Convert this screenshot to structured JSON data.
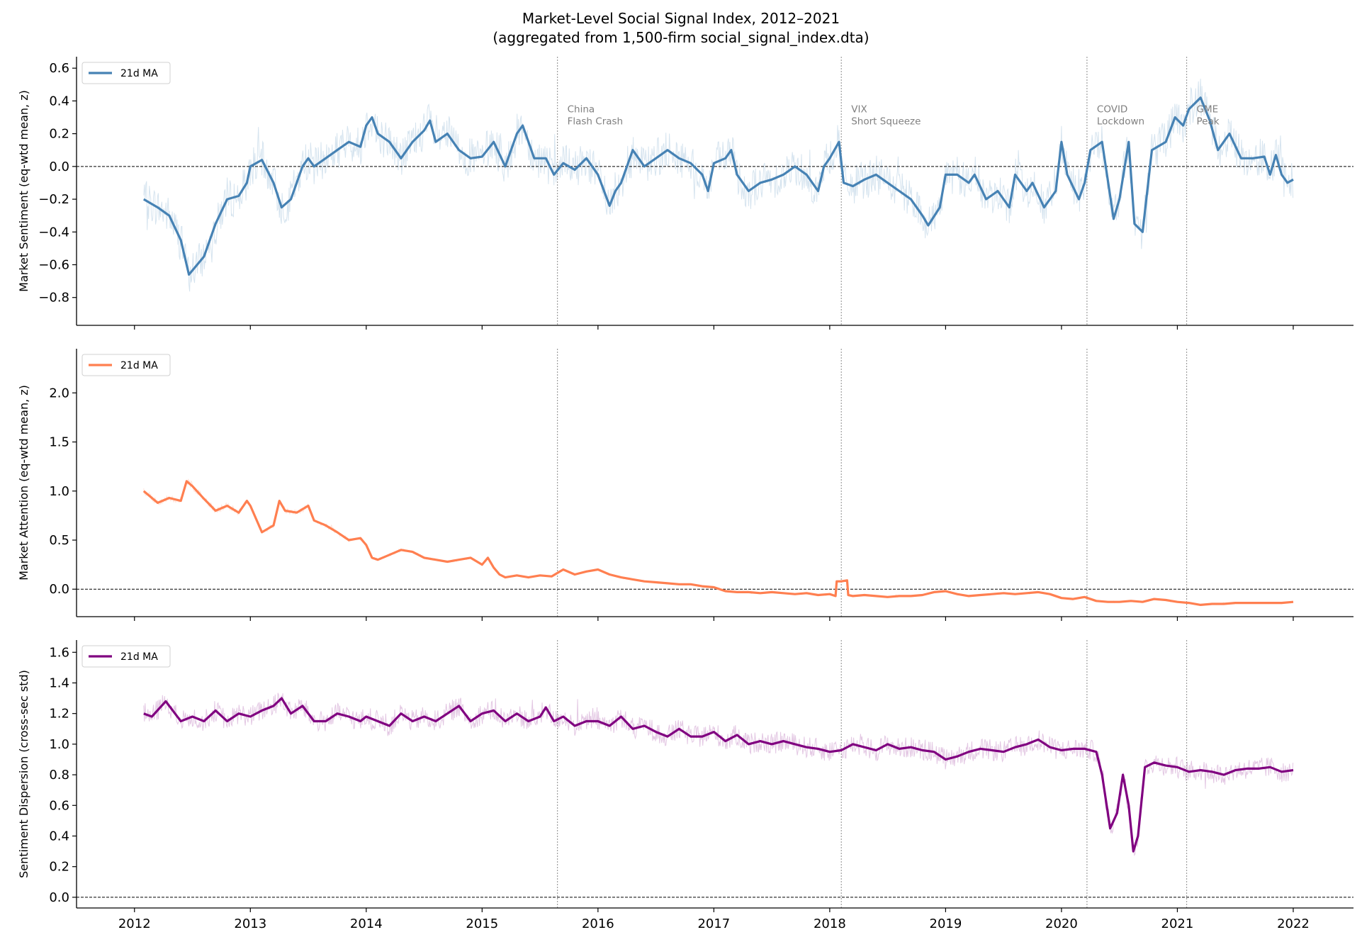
{
  "title_line1": "Market-Level Social Signal Index, 2012–2021",
  "title_line2": "(aggregated from 1,500-firm social_signal_index.dta)",
  "colors": {
    "sentiment": "#4682b4",
    "attention": "#ff7f50",
    "dispersion": "#800080",
    "event_line": "#9e9e9e",
    "zero_line": "#000000"
  },
  "chart_data": [
    {
      "type": "line",
      "ylabel": "Market Sentiment (eq-wtd mean, z)",
      "ylim": [
        -0.97,
        0.67
      ],
      "yticks": [
        -0.8,
        -0.6,
        -0.4,
        -0.2,
        0.0,
        0.2,
        0.4,
        0.6
      ],
      "ytick_labels": [
        "−0.8",
        "−0.6",
        "−0.4",
        "−0.2",
        "0.0",
        "0.2",
        "0.4",
        "0.6"
      ],
      "legend": "top-left",
      "series": [
        {
          "name": "21d MA",
          "x": [
            2012.08,
            2012.2,
            2012.3,
            2012.4,
            2012.47,
            2012.6,
            2012.7,
            2012.8,
            2012.9,
            2012.97,
            2013.0,
            2013.1,
            2013.2,
            2013.27,
            2013.35,
            2013.45,
            2013.5,
            2013.55,
            2013.65,
            2013.75,
            2013.85,
            2013.95,
            2014.0,
            2014.05,
            2014.1,
            2014.2,
            2014.3,
            2014.4,
            2014.5,
            2014.55,
            2014.6,
            2014.7,
            2014.8,
            2014.9,
            2015.0,
            2015.1,
            2015.2,
            2015.3,
            2015.35,
            2015.45,
            2015.55,
            2015.62,
            2015.7,
            2015.8,
            2015.9,
            2016.0,
            2016.1,
            2016.15,
            2016.2,
            2016.3,
            2016.4,
            2016.5,
            2016.6,
            2016.7,
            2016.8,
            2016.9,
            2016.95,
            2017.0,
            2017.1,
            2017.15,
            2017.2,
            2017.3,
            2017.4,
            2017.5,
            2017.6,
            2017.7,
            2017.8,
            2017.9,
            2017.95,
            2018.0,
            2018.08,
            2018.12,
            2018.2,
            2018.3,
            2018.4,
            2018.5,
            2018.6,
            2018.7,
            2018.8,
            2018.85,
            2018.95,
            2019.0,
            2019.1,
            2019.2,
            2019.25,
            2019.35,
            2019.45,
            2019.55,
            2019.6,
            2019.7,
            2019.75,
            2019.85,
            2019.95,
            2020.0,
            2020.05,
            2020.15,
            2020.2,
            2020.25,
            2020.35,
            2020.45,
            2020.5,
            2020.58,
            2020.63,
            2020.7,
            2020.78,
            2020.9,
            2020.98,
            2021.05,
            2021.1,
            2021.2,
            2021.28,
            2021.35,
            2021.45,
            2021.55,
            2021.65,
            2021.75,
            2021.8,
            2021.85,
            2021.9,
            2021.95,
            2022.0
          ],
          "y": [
            -0.2,
            -0.25,
            -0.3,
            -0.45,
            -0.66,
            -0.55,
            -0.35,
            -0.2,
            -0.18,
            -0.1,
            0.0,
            0.04,
            -0.1,
            -0.25,
            -0.2,
            0.0,
            0.05,
            0.0,
            0.05,
            0.1,
            0.15,
            0.12,
            0.25,
            0.3,
            0.2,
            0.15,
            0.05,
            0.15,
            0.22,
            0.28,
            0.15,
            0.2,
            0.1,
            0.05,
            0.06,
            0.15,
            0.0,
            0.2,
            0.25,
            0.05,
            0.05,
            -0.05,
            0.02,
            -0.02,
            0.05,
            -0.05,
            -0.24,
            -0.15,
            -0.1,
            0.1,
            0.0,
            0.05,
            0.1,
            0.05,
            0.02,
            -0.05,
            -0.15,
            0.02,
            0.05,
            0.1,
            -0.05,
            -0.15,
            -0.1,
            -0.08,
            -0.05,
            0.0,
            -0.05,
            -0.15,
            0.0,
            0.05,
            0.15,
            -0.1,
            -0.12,
            -0.08,
            -0.05,
            -0.1,
            -0.15,
            -0.2,
            -0.3,
            -0.36,
            -0.25,
            -0.05,
            -0.05,
            -0.1,
            -0.05,
            -0.2,
            -0.15,
            -0.25,
            -0.05,
            -0.15,
            -0.1,
            -0.25,
            -0.15,
            0.15,
            -0.05,
            -0.2,
            -0.1,
            0.1,
            0.15,
            -0.32,
            -0.2,
            0.15,
            -0.35,
            -0.4,
            0.1,
            0.15,
            0.3,
            0.25,
            0.35,
            0.42,
            0.28,
            0.1,
            0.2,
            0.05,
            0.05,
            0.06,
            -0.05,
            0.07,
            -0.05,
            -0.1,
            -0.08
          ]
        },
        {
          "name": "",
          "x": [
            2012.0,
            2022.0
          ],
          "y": [
            0.0,
            0.0
          ]
        }
      ]
    },
    {
      "type": "line",
      "ylabel": "Market Attention (eq-wtd mean, z)",
      "ylim": [
        -0.28,
        2.45
      ],
      "yticks": [
        0.0,
        0.5,
        1.0,
        1.5,
        2.0
      ],
      "ytick_labels": [
        "0.0",
        "0.5",
        "1.0",
        "1.5",
        "2.0"
      ],
      "legend": "top-left",
      "series": [
        {
          "name": "21d MA",
          "x": [
            2012.08,
            2012.2,
            2012.3,
            2012.4,
            2012.45,
            2012.5,
            2012.6,
            2012.7,
            2012.8,
            2012.9,
            2012.97,
            2013.0,
            2013.1,
            2013.2,
            2013.25,
            2013.3,
            2013.4,
            2013.5,
            2013.55,
            2013.65,
            2013.75,
            2013.85,
            2013.95,
            2014.0,
            2014.05,
            2014.1,
            2014.2,
            2014.3,
            2014.4,
            2014.5,
            2014.6,
            2014.7,
            2014.8,
            2014.9,
            2015.0,
            2015.05,
            2015.1,
            2015.15,
            2015.2,
            2015.3,
            2015.4,
            2015.5,
            2015.6,
            2015.7,
            2015.8,
            2015.9,
            2016.0,
            2016.1,
            2016.2,
            2016.3,
            2016.4,
            2016.5,
            2016.6,
            2016.7,
            2016.8,
            2016.9,
            2017.0,
            2017.1,
            2017.2,
            2017.3,
            2017.4,
            2017.5,
            2017.6,
            2017.7,
            2017.8,
            2017.9,
            2018.0,
            2018.05,
            2018.06,
            2018.1,
            2018.15,
            2018.16,
            2018.2,
            2018.3,
            2018.4,
            2018.5,
            2018.6,
            2018.7,
            2018.8,
            2018.9,
            2019.0,
            2019.1,
            2019.2,
            2019.3,
            2019.4,
            2019.5,
            2019.6,
            2019.7,
            2019.8,
            2019.9,
            2020.0,
            2020.1,
            2020.2,
            2020.3,
            2020.4,
            2020.5,
            2020.6,
            2020.7,
            2020.8,
            2020.9,
            2021.0,
            2021.1,
            2021.2,
            2021.3,
            2021.4,
            2021.5,
            2021.6,
            2021.7,
            2021.8,
            2021.9,
            2022.0
          ],
          "y": [
            1.0,
            0.88,
            0.93,
            0.9,
            1.1,
            1.05,
            0.92,
            0.8,
            0.85,
            0.78,
            0.9,
            0.85,
            0.58,
            0.65,
            0.9,
            0.8,
            0.78,
            0.85,
            0.7,
            0.65,
            0.58,
            0.5,
            0.52,
            0.45,
            0.32,
            0.3,
            0.35,
            0.4,
            0.38,
            0.32,
            0.3,
            0.28,
            0.3,
            0.32,
            0.25,
            0.32,
            0.22,
            0.15,
            0.12,
            0.14,
            0.12,
            0.14,
            0.13,
            0.2,
            0.15,
            0.18,
            0.2,
            0.15,
            0.12,
            0.1,
            0.08,
            0.07,
            0.06,
            0.05,
            0.05,
            0.03,
            0.02,
            -0.02,
            -0.03,
            -0.03,
            -0.04,
            -0.03,
            -0.04,
            -0.05,
            -0.04,
            -0.06,
            -0.05,
            -0.07,
            0.08,
            0.08,
            0.09,
            -0.06,
            -0.07,
            -0.06,
            -0.07,
            -0.08,
            -0.07,
            -0.07,
            -0.06,
            -0.03,
            -0.02,
            -0.05,
            -0.07,
            -0.06,
            -0.05,
            -0.04,
            -0.05,
            -0.04,
            -0.03,
            -0.05,
            -0.09,
            -0.1,
            -0.08,
            -0.12,
            -0.13,
            -0.13,
            -0.12,
            -0.13,
            -0.1,
            -0.11,
            -0.13,
            -0.14,
            -0.16,
            -0.15,
            -0.15,
            -0.14,
            -0.14,
            -0.14,
            -0.14,
            -0.14,
            -0.13
          ]
        },
        {
          "name": "",
          "x": [
            2012.0,
            2022.0
          ],
          "y": [
            0.0,
            0.0
          ]
        }
      ]
    },
    {
      "type": "line",
      "ylabel": "Sentiment Dispersion (cross-sec std)",
      "ylim": [
        -0.07,
        1.68
      ],
      "yticks": [
        0.0,
        0.2,
        0.4,
        0.6,
        0.8,
        1.0,
        1.2,
        1.4,
        1.6
      ],
      "ytick_labels": [
        "0.0",
        "0.2",
        "0.4",
        "0.6",
        "0.8",
        "1.0",
        "1.2",
        "1.4",
        "1.6"
      ],
      "legend": "top-left",
      "series": [
        {
          "name": "21d MA",
          "x": [
            2012.08,
            2012.15,
            2012.27,
            2012.4,
            2012.5,
            2012.6,
            2012.7,
            2012.8,
            2012.9,
            2013.0,
            2013.1,
            2013.2,
            2013.27,
            2013.35,
            2013.45,
            2013.55,
            2013.65,
            2013.75,
            2013.85,
            2013.95,
            2014.0,
            2014.1,
            2014.2,
            2014.3,
            2014.4,
            2014.5,
            2014.6,
            2014.7,
            2014.8,
            2014.9,
            2015.0,
            2015.1,
            2015.2,
            2015.3,
            2015.4,
            2015.5,
            2015.55,
            2015.62,
            2015.7,
            2015.8,
            2015.9,
            2016.0,
            2016.1,
            2016.2,
            2016.3,
            2016.4,
            2016.5,
            2016.6,
            2016.7,
            2016.8,
            2016.9,
            2017.0,
            2017.1,
            2017.2,
            2017.3,
            2017.4,
            2017.5,
            2017.6,
            2017.7,
            2017.8,
            2017.9,
            2018.0,
            2018.1,
            2018.2,
            2018.3,
            2018.4,
            2018.5,
            2018.6,
            2018.7,
            2018.8,
            2018.9,
            2019.0,
            2019.1,
            2019.2,
            2019.3,
            2019.4,
            2019.5,
            2019.6,
            2019.7,
            2019.8,
            2019.9,
            2020.0,
            2020.1,
            2020.2,
            2020.3,
            2020.35,
            2020.42,
            2020.48,
            2020.53,
            2020.58,
            2020.62,
            2020.66,
            2020.72,
            2020.8,
            2020.9,
            2021.0,
            2021.1,
            2021.2,
            2021.3,
            2021.4,
            2021.5,
            2021.6,
            2021.7,
            2021.8,
            2021.9,
            2022.0
          ],
          "y": [
            1.2,
            1.18,
            1.28,
            1.15,
            1.18,
            1.15,
            1.22,
            1.15,
            1.2,
            1.18,
            1.22,
            1.25,
            1.3,
            1.2,
            1.25,
            1.15,
            1.15,
            1.2,
            1.18,
            1.15,
            1.18,
            1.15,
            1.12,
            1.2,
            1.15,
            1.18,
            1.15,
            1.2,
            1.25,
            1.15,
            1.2,
            1.22,
            1.15,
            1.2,
            1.15,
            1.18,
            1.24,
            1.15,
            1.18,
            1.12,
            1.15,
            1.15,
            1.12,
            1.18,
            1.1,
            1.12,
            1.08,
            1.05,
            1.1,
            1.05,
            1.05,
            1.08,
            1.02,
            1.06,
            1.0,
            1.02,
            1.0,
            1.02,
            1.0,
            0.98,
            0.97,
            0.95,
            0.96,
            1.0,
            0.98,
            0.96,
            1.0,
            0.97,
            0.98,
            0.96,
            0.95,
            0.9,
            0.92,
            0.95,
            0.97,
            0.96,
            0.95,
            0.98,
            1.0,
            1.03,
            0.98,
            0.96,
            0.97,
            0.97,
            0.95,
            0.8,
            0.45,
            0.55,
            0.8,
            0.6,
            0.3,
            0.4,
            0.85,
            0.88,
            0.86,
            0.85,
            0.82,
            0.83,
            0.82,
            0.8,
            0.83,
            0.84,
            0.84,
            0.85,
            0.82,
            0.83
          ]
        },
        {
          "name": "",
          "x": [
            2012.0,
            2022.0
          ],
          "y": [
            0.0,
            0.0
          ]
        }
      ]
    }
  ],
  "x_axis": {
    "xlim": [
      2011.5,
      2022.52
    ],
    "ticks": [
      2012,
      2013,
      2014,
      2015,
      2016,
      2017,
      2018,
      2019,
      2020,
      2021,
      2022
    ],
    "tick_labels": [
      "2012",
      "2013",
      "2014",
      "2015",
      "2016",
      "2017",
      "2018",
      "2019",
      "2020",
      "2021",
      "2022"
    ]
  },
  "events": [
    {
      "x": 2015.65,
      "line1": "China",
      "line2": "Flash Crash"
    },
    {
      "x": 2018.1,
      "line1": "VIX",
      "line2": "Short Squeeze"
    },
    {
      "x": 2020.22,
      "line1": "COVID",
      "line2": "Lockdown"
    },
    {
      "x": 2021.08,
      "line1": "GME",
      "line2": "Peak"
    }
  ]
}
